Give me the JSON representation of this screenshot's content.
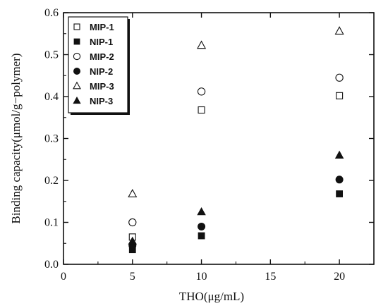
{
  "chart_data": {
    "type": "scatter",
    "xlabel": "THO(μg/mL)",
    "ylabel": "Binding capacity(μmol/g−polymer)",
    "xlim": [
      0,
      22.5
    ],
    "ylim": [
      0,
      0.6
    ],
    "xticks": [
      0,
      5,
      10,
      15,
      20
    ],
    "yticks": [
      0.0,
      0.1,
      0.2,
      0.3,
      0.4,
      0.5,
      0.6
    ],
    "xtick_labels": [
      "0",
      "5",
      "10",
      "15",
      "20"
    ],
    "ytick_labels": [
      "0.0",
      "0.1",
      "0.2",
      "0.3",
      "0.4",
      "0.5",
      "0.6"
    ],
    "legend_position": "top-left",
    "grid": false,
    "series": [
      {
        "name": "MIP-1",
        "marker": "square-open",
        "x": [
          5,
          10,
          20
        ],
        "y": [
          0.065,
          0.368,
          0.402
        ]
      },
      {
        "name": "NIP-1",
        "marker": "square-filled",
        "x": [
          5,
          10,
          20
        ],
        "y": [
          0.035,
          0.068,
          0.168
        ]
      },
      {
        "name": "MIP-2",
        "marker": "circle-open",
        "x": [
          5,
          10,
          20
        ],
        "y": [
          0.1,
          0.412,
          0.445
        ]
      },
      {
        "name": "NIP-2",
        "marker": "circle-filled",
        "x": [
          5,
          10,
          20
        ],
        "y": [
          0.045,
          0.09,
          0.202
        ]
      },
      {
        "name": "MIP-3",
        "marker": "triangle-open",
        "x": [
          5,
          10,
          20
        ],
        "y": [
          0.168,
          0.522,
          0.556
        ]
      },
      {
        "name": "NIP-3",
        "marker": "triangle-filled",
        "x": [
          5,
          10,
          20
        ],
        "y": [
          0.055,
          0.125,
          0.26
        ]
      }
    ],
    "colors": {
      "ink": "#111111",
      "background": "#ffffff"
    }
  }
}
